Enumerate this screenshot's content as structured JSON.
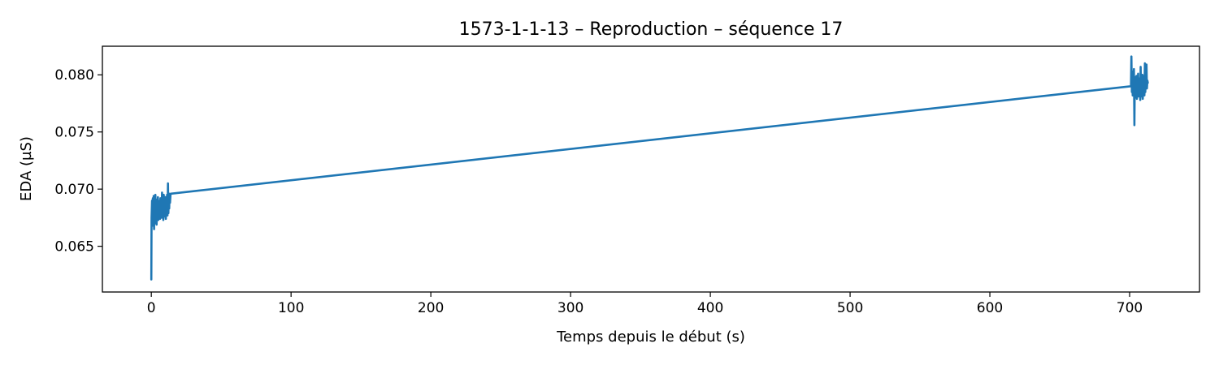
{
  "chart_data": {
    "type": "line",
    "title": "1573-1-1-13 – Reproduction – séquence 17",
    "xlabel": "Temps depuis le début (s)",
    "ylabel": "EDA (µS)",
    "xlim": [
      -35,
      750
    ],
    "ylim": [
      0.061,
      0.0825
    ],
    "xticks": [
      0,
      100,
      200,
      300,
      400,
      500,
      600,
      700
    ],
    "xtick_labels": [
      "0",
      "100",
      "200",
      "300",
      "400",
      "500",
      "600",
      "700"
    ],
    "yticks": [
      0.065,
      0.07,
      0.075,
      0.08
    ],
    "ytick_labels": [
      "0.065",
      "0.070",
      "0.075",
      "0.080"
    ],
    "grid": false,
    "series": [
      {
        "color": "#1f77b4",
        "x": [
          0.0,
          0.2,
          0.5,
          0.8,
          1.1,
          1.4,
          1.7,
          2.0,
          2.3,
          2.6,
          2.9,
          3.2,
          3.5,
          3.8,
          4.1,
          4.4,
          4.7,
          5.0,
          5.3,
          5.6,
          5.9,
          6.2,
          6.5,
          6.8,
          7.1,
          7.4,
          7.7,
          8.0,
          8.3,
          8.6,
          8.9,
          9.2,
          9.5,
          9.8,
          10.1,
          10.4,
          10.7,
          11.0,
          11.3,
          11.6,
          11.9,
          12.2,
          12.5,
          12.8,
          13.1,
          13.4,
          13.7,
          14.0,
          701.0,
          701.3,
          701.6,
          701.9,
          702.2,
          702.5,
          702.8,
          703.1,
          703.4,
          703.7,
          704.0,
          704.3,
          704.6,
          704.9,
          705.2,
          705.5,
          705.8,
          706.1,
          706.4,
          706.7,
          707.0,
          707.3,
          707.6,
          707.9,
          708.2,
          708.5,
          708.8,
          709.1,
          709.4,
          709.7,
          710.0,
          710.3,
          710.6,
          710.9,
          711.2,
          711.5,
          711.8,
          712.1,
          712.4,
          712.7,
          713.0
        ],
        "y": [
          0.0621,
          0.0675,
          0.069,
          0.0668,
          0.0692,
          0.0672,
          0.0694,
          0.0665,
          0.0693,
          0.067,
          0.0695,
          0.0674,
          0.0691,
          0.0669,
          0.0688,
          0.0676,
          0.0693,
          0.0673,
          0.069,
          0.0678,
          0.0689,
          0.0674,
          0.0692,
          0.0677,
          0.0688,
          0.0675,
          0.0697,
          0.0678,
          0.069,
          0.0673,
          0.0695,
          0.0679,
          0.0689,
          0.0676,
          0.0693,
          0.0674,
          0.0691,
          0.0678,
          0.0695,
          0.0677,
          0.0705,
          0.0679,
          0.0694,
          0.0683,
          0.0696,
          0.0688,
          0.0695,
          0.0696,
          0.079,
          0.0816,
          0.0785,
          0.0803,
          0.0782,
          0.0796,
          0.0782,
          0.0805,
          0.0756,
          0.0798,
          0.078,
          0.0796,
          0.0786,
          0.0799,
          0.0779,
          0.0796,
          0.0788,
          0.0801,
          0.0781,
          0.0794,
          0.0785,
          0.0797,
          0.0778,
          0.0807,
          0.0781,
          0.0797,
          0.0784,
          0.08,
          0.0779,
          0.0796,
          0.0787,
          0.0799,
          0.0782,
          0.081,
          0.0785,
          0.0797,
          0.079,
          0.0809,
          0.0788,
          0.0795,
          0.0793
        ]
      }
    ]
  }
}
